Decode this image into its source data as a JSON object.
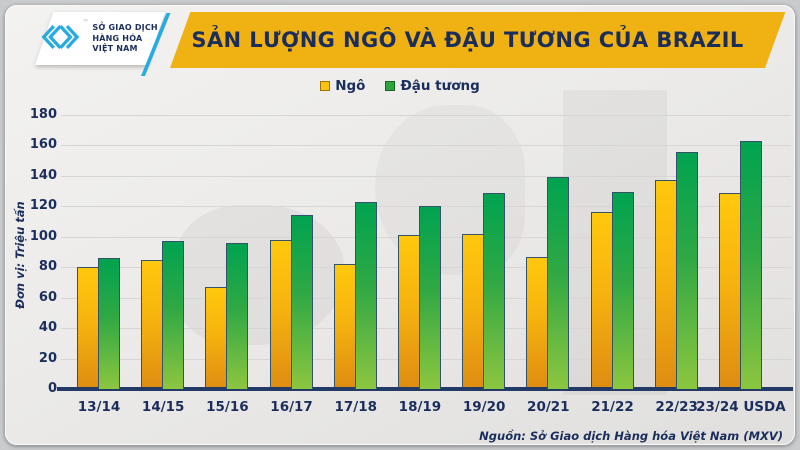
{
  "logo": {
    "icon": "mxv-chevrons-icon",
    "trademark": "™",
    "lines": [
      "SỞ GIAO DỊCH",
      "HÀNG HÓA",
      "VIỆT NAM"
    ]
  },
  "header": {
    "title": "SẢN LƯỢNG NGÔ VÀ ĐẬU TƯƠNG CỦA BRAZIL"
  },
  "footer": {
    "source": "Nguồn: Sở Giao dịch Hàng hóa Việt Nam (MXV)"
  },
  "colors": {
    "banner_gold": "#F0B213",
    "navy_text": "#1B2E5B",
    "cyan_accent": "#29ABE2",
    "axis_line": "#243A66",
    "gridline": "#D7D6D4"
  },
  "chart_data": {
    "type": "bar",
    "title": "SẢN LƯỢNG NGÔ VÀ ĐẬU TƯƠNG CỦA BRAZIL",
    "ylabel": "Đơn vị: Triệu tấn",
    "xlabel": "",
    "ylim": [
      0,
      180
    ],
    "ytick_step": 20,
    "grid": true,
    "legend_position": "top-center",
    "categories": [
      "13/14",
      "14/15",
      "15/16",
      "16/17",
      "17/18",
      "18/19",
      "19/20",
      "20/21",
      "21/22",
      "22/23",
      "23/24 USDA"
    ],
    "series": [
      {
        "name": "Ngô",
        "values": [
          80,
          85,
          67,
          98,
          82,
          101,
          102,
          87,
          116,
          137,
          129
        ],
        "legend_color": "#FDC20D",
        "gradient_top": "#FFC80D",
        "gradient_mid": "#F7B30E",
        "gradient_bottom": "#DD8D12"
      },
      {
        "name": "Đậu tương",
        "values": [
          86,
          97,
          96,
          114.5,
          123,
          120,
          128.5,
          139.5,
          129.5,
          156,
          163
        ],
        "legend_color": "#2BA63F",
        "gradient_top": "#00A350",
        "gradient_mid": "#30A844",
        "gradient_bottom": "#8CC63F"
      }
    ]
  }
}
